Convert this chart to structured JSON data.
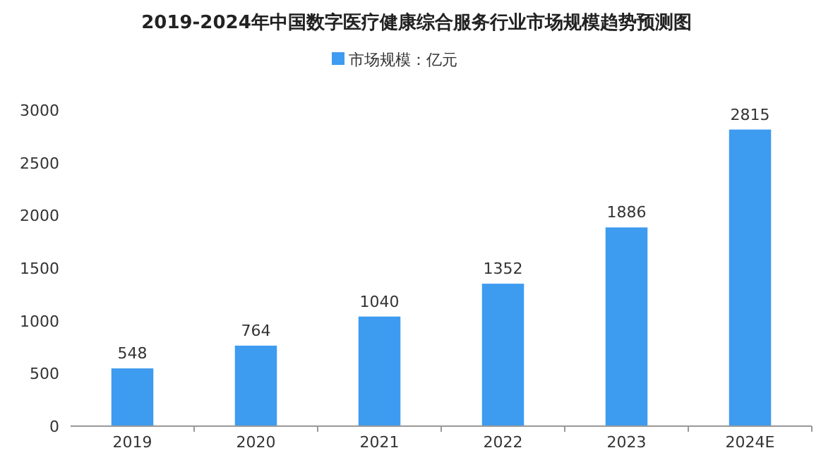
{
  "chart_data": {
    "type": "bar",
    "title": "2019-2024年中国数字医疗健康综合服务行业市场规模趋势预测图",
    "categories": [
      "2019",
      "2020",
      "2021",
      "2022",
      "2023",
      "2024E"
    ],
    "series": [
      {
        "name": "市场规模：亿元",
        "color": "#3d9bf0",
        "values": [
          548,
          764,
          1040,
          1352,
          1886,
          2815
        ]
      }
    ],
    "ylim": [
      0,
      3000
    ],
    "yticks": [
      0,
      500,
      1000,
      1500,
      2000,
      2500,
      3000
    ],
    "grid": false,
    "legend": "top",
    "data_labels": true
  }
}
